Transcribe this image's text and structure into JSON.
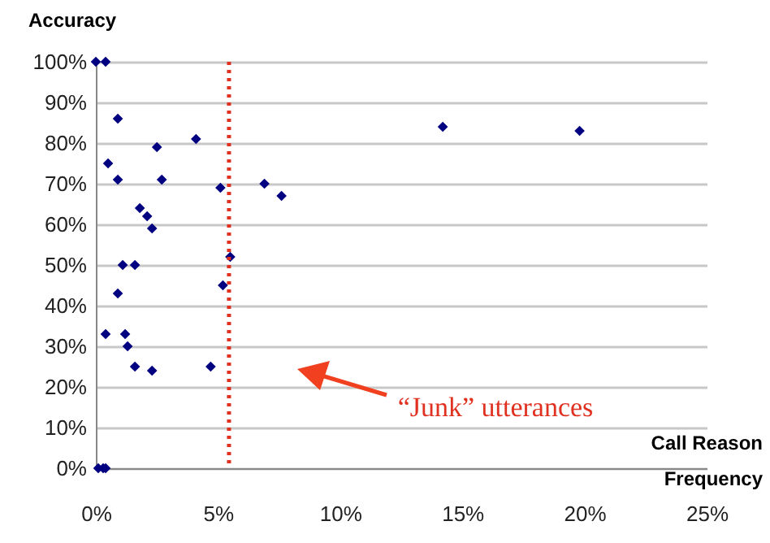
{
  "chart_data": {
    "type": "scatter",
    "ylabel": "Accuracy",
    "xlabel": "Call Reason Frequency",
    "x": [
      0,
      0.4,
      0.9,
      0.5,
      0.9,
      2.5,
      4.1,
      2.7,
      1.8,
      2.1,
      2.3,
      5.1,
      6.9,
      7.6,
      5.5,
      14.2,
      19.8,
      1.1,
      1.6,
      0.9,
      5.2,
      0.4,
      1.2,
      1.3,
      1.6,
      2.3,
      4.7,
      0.1,
      0.3,
      0.4
    ],
    "series": [
      {
        "color": "#000080",
        "values": [
          100,
          100,
          86,
          75,
          71,
          79,
          81,
          71,
          64,
          62,
          59,
          69,
          70,
          67,
          52,
          84,
          83,
          50,
          50,
          43,
          45,
          33,
          33,
          30,
          25,
          24,
          25,
          0,
          0,
          0
        ]
      }
    ],
    "xlim": [
      0,
      25
    ],
    "ylim": [
      0,
      100
    ],
    "xticks": [
      {
        "value": 0,
        "label": "0%"
      },
      {
        "value": 5,
        "label": "5%"
      },
      {
        "value": 10,
        "label": "10%"
      },
      {
        "value": 15,
        "label": "15%"
      },
      {
        "value": 20,
        "label": "20%"
      },
      {
        "value": 25,
        "label": "25%"
      }
    ],
    "yticks": [
      {
        "value": 0,
        "label": "0%"
      },
      {
        "value": 10,
        "label": "10%"
      },
      {
        "value": 20,
        "label": "20%"
      },
      {
        "value": 30,
        "label": "30%"
      },
      {
        "value": 40,
        "label": "40%"
      },
      {
        "value": 50,
        "label": "50%"
      },
      {
        "value": 60,
        "label": "60%"
      },
      {
        "value": 70,
        "label": "70%"
      },
      {
        "value": 80,
        "label": "80%"
      },
      {
        "value": 90,
        "label": "90%"
      },
      {
        "value": 100,
        "label": "100%"
      }
    ],
    "ref_lines": [
      {
        "axis": "x",
        "value": 5.45,
        "color": "#e03020",
        "line_style": "dotted"
      }
    ],
    "annotations": [
      "“Junk” utterances"
    ],
    "grid": "y",
    "marker": "diamond"
  }
}
